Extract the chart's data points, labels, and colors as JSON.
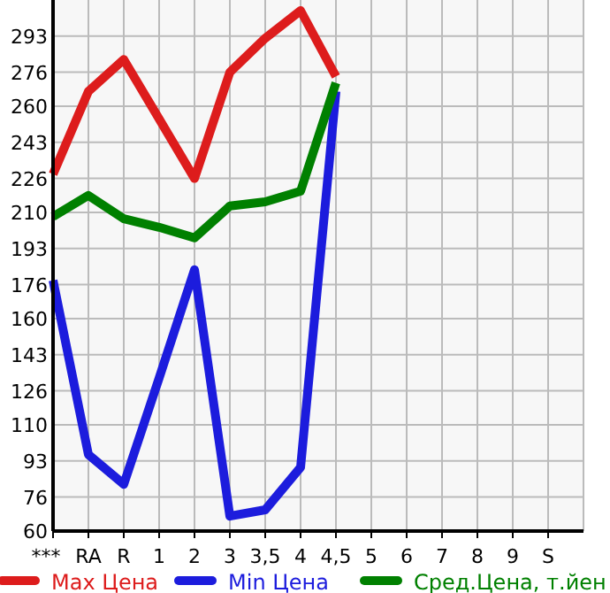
{
  "chart_data": {
    "type": "line",
    "categories": [
      "***",
      "RA",
      "R",
      "1",
      "2",
      "3",
      "3,5",
      "4",
      "4,5",
      "5",
      "6",
      "7",
      "8",
      "9",
      "S"
    ],
    "ylim": [
      60,
      310
    ],
    "yticks": [
      60,
      76,
      93,
      110,
      126,
      143,
      160,
      176,
      193,
      210,
      226,
      243,
      260,
      276,
      293
    ],
    "grid": true,
    "legend": "bottom",
    "series": [
      {
        "name": "Max Цена",
        "color": "#dd1c1c",
        "values": [
          228,
          267,
          282,
          254,
          226,
          276,
          292,
          305,
          274,
          null,
          null,
          null,
          null,
          null,
          null
        ]
      },
      {
        "name": "Min Цена",
        "color": "#1c1cdd",
        "values": [
          178,
          96,
          82,
          132,
          183,
          67,
          70,
          90,
          267,
          null,
          null,
          null,
          null,
          null,
          null
        ]
      },
      {
        "name": "Сред.Цена, т.йен",
        "color": "#008000",
        "values": [
          208,
          218,
          207,
          203,
          198,
          213,
          215,
          220,
          271,
          null,
          null,
          null,
          null,
          null,
          null
        ]
      }
    ]
  }
}
